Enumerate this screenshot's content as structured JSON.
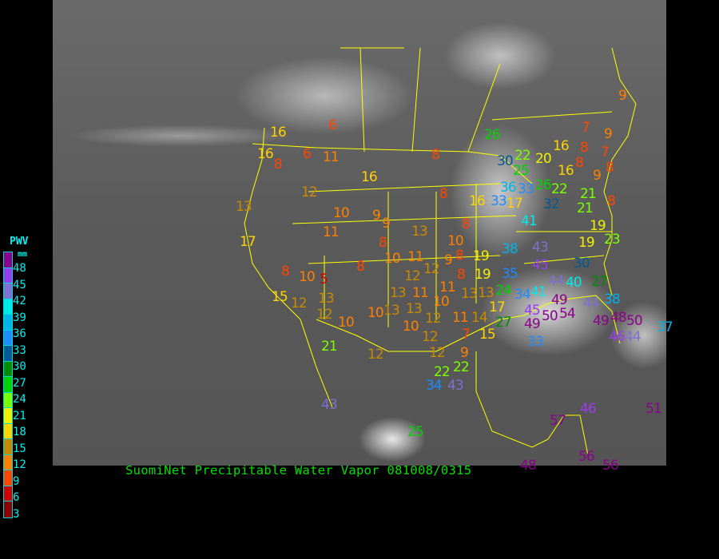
{
  "title": "SuomiNet Precipitable Water Vapor 081008/0315",
  "legend": {
    "title": "PWV",
    "unit": "mm",
    "labels": [
      "48",
      "45",
      "42",
      "39",
      "36",
      "33",
      "30",
      "27",
      "24",
      "21",
      "18",
      "15",
      "12",
      "9",
      "6",
      "3"
    ],
    "colors": [
      "#8c008c",
      "#9a3cf0",
      "#8070d0",
      "#00e8e8",
      "#00b4e8",
      "#1e8cff",
      "#005a96",
      "#008c00",
      "#00d200",
      "#7cff00",
      "#f0f000",
      "#ffd200",
      "#c88a00",
      "#ff8000",
      "#ff4600",
      "#d20000",
      "#8c0000"
    ]
  },
  "stations": [
    "16",
    "16",
    "8",
    "6",
    "6",
    "11",
    "12",
    "16",
    "13",
    "17",
    "10",
    "11",
    "9",
    "9",
    "8",
    "8",
    "8",
    "13",
    "16",
    "33",
    "10",
    "8",
    "8",
    "9",
    "10",
    "11",
    "12",
    "8",
    "8",
    "10",
    "5",
    "15",
    "12",
    "13",
    "12",
    "10",
    "10",
    "13",
    "11",
    "13",
    "13",
    "12",
    "11",
    "8",
    "10",
    "13",
    "12",
    "10",
    "12",
    "11",
    "7",
    "14",
    "13",
    "15",
    "12",
    "9",
    "12",
    "21",
    "22",
    "22",
    "34",
    "43",
    "43",
    "25",
    "19",
    "19",
    "24",
    "17",
    "27",
    "34",
    "35",
    "41",
    "38",
    "43",
    "45",
    "44",
    "49",
    "45",
    "49",
    "33",
    "50",
    "54",
    "44",
    "38",
    "27",
    "48",
    "49",
    "50",
    "46",
    "44",
    "30",
    "40",
    "19",
    "19",
    "23",
    "21",
    "21",
    "41",
    "32",
    "22",
    "26",
    "16",
    "33",
    "36",
    "25",
    "30",
    "22",
    "20",
    "16",
    "17",
    "8",
    "8",
    "8",
    "7",
    "9",
    "8",
    "7",
    "9",
    "9",
    "26",
    "37",
    "57",
    "46",
    "51",
    "56",
    "56",
    "48"
  ]
}
